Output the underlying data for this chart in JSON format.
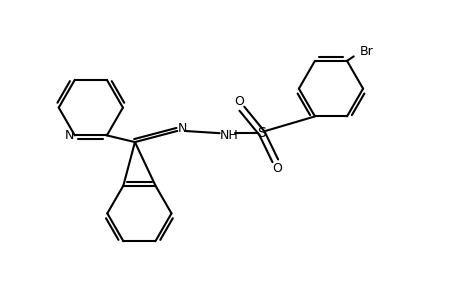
{
  "background_color": "#ffffff",
  "line_color": "#000000",
  "line_width": 1.5,
  "figsize": [
    4.49,
    2.91
  ],
  "dpi": 100,
  "xlim": [
    0,
    10
  ],
  "ylim": [
    0,
    6.5
  ]
}
